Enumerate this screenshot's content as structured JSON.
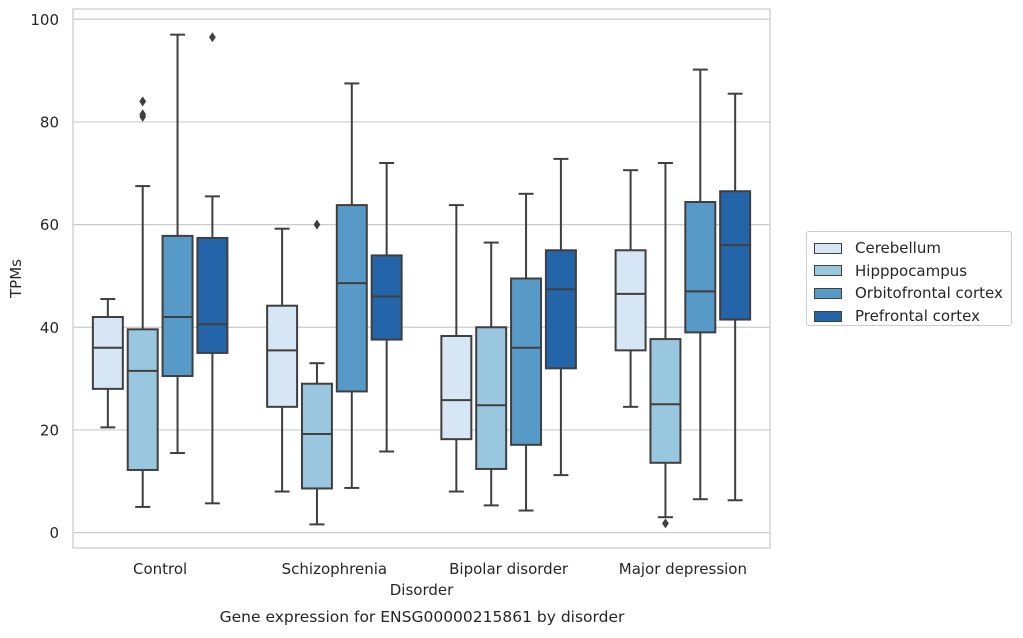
{
  "chart_data": {
    "type": "box",
    "title": "Gene expression for ENSG00000215861 by disorder",
    "xlabel": "Disorder",
    "ylabel": "TPMs",
    "ylim": [
      -3,
      102
    ],
    "yticks": [
      0,
      20,
      40,
      60,
      80,
      100
    ],
    "grid": "horizontal",
    "legend_position": "right",
    "categories": [
      "Control",
      "Schizophrenia",
      "Bipolar disorder",
      "Major depression"
    ],
    "series": [
      {
        "name": "Cerebellum",
        "color": "#d6e6f4",
        "boxes": [
          {
            "whislo": 20.5,
            "q1": 28,
            "med": 36,
            "q3": 42,
            "whishi": 45.5,
            "fliers": []
          },
          {
            "whislo": 8,
            "q1": 24.5,
            "med": 35.5,
            "q3": 44.2,
            "whishi": 59.2,
            "fliers": []
          },
          {
            "whislo": 8,
            "q1": 18.2,
            "med": 25.8,
            "q3": 38.3,
            "whishi": 63.8,
            "fliers": []
          },
          {
            "whislo": 24.5,
            "q1": 35.5,
            "med": 46.5,
            "q3": 55,
            "whishi": 70.6,
            "fliers": []
          }
        ]
      },
      {
        "name": "Hipppocampus",
        "color": "#9ac7e0",
        "boxes": [
          {
            "whislo": 5,
            "q1": 12.2,
            "med": 31.5,
            "q3": 39.6,
            "whishi": 67.5,
            "fliers": [
              81,
              84,
              81.5
            ]
          },
          {
            "whislo": 1.6,
            "q1": 8.6,
            "med": 19.2,
            "q3": 29,
            "whishi": 33,
            "fliers": [
              60
            ]
          },
          {
            "whislo": 5.3,
            "q1": 12.4,
            "med": 24.8,
            "q3": 40,
            "whishi": 56.5,
            "fliers": []
          },
          {
            "whislo": 3,
            "q1": 13.6,
            "med": 25,
            "q3": 37.7,
            "whishi": 72,
            "fliers": [
              1.8
            ]
          }
        ]
      },
      {
        "name": "Orbitofrontal cortex",
        "color": "#5799c7",
        "boxes": [
          {
            "whislo": 15.5,
            "q1": 30.5,
            "med": 42,
            "q3": 57.8,
            "whishi": 97,
            "fliers": []
          },
          {
            "whislo": 8.7,
            "q1": 27.5,
            "med": 48.6,
            "q3": 63.8,
            "whishi": 87.5,
            "fliers": []
          },
          {
            "whislo": 4.3,
            "q1": 17.1,
            "med": 36,
            "q3": 49.5,
            "whishi": 66,
            "fliers": []
          },
          {
            "whislo": 6.5,
            "q1": 39,
            "med": 47,
            "q3": 64.4,
            "whishi": 90.2,
            "fliers": []
          }
        ]
      },
      {
        "name": "Prefrontal cortex",
        "color": "#2465a9",
        "boxes": [
          {
            "whislo": 5.7,
            "q1": 35,
            "med": 40.6,
            "q3": 57.4,
            "whishi": 65.5,
            "fliers": [
              96.5
            ]
          },
          {
            "whislo": 15.8,
            "q1": 37.6,
            "med": 46,
            "q3": 54,
            "whishi": 72,
            "fliers": []
          },
          {
            "whislo": 11.2,
            "q1": 32,
            "med": 47.4,
            "q3": 55,
            "whishi": 72.8,
            "fliers": []
          },
          {
            "whislo": 6.3,
            "q1": 41.5,
            "med": 56,
            "q3": 66.5,
            "whishi": 85.5,
            "fliers": []
          }
        ]
      }
    ]
  }
}
